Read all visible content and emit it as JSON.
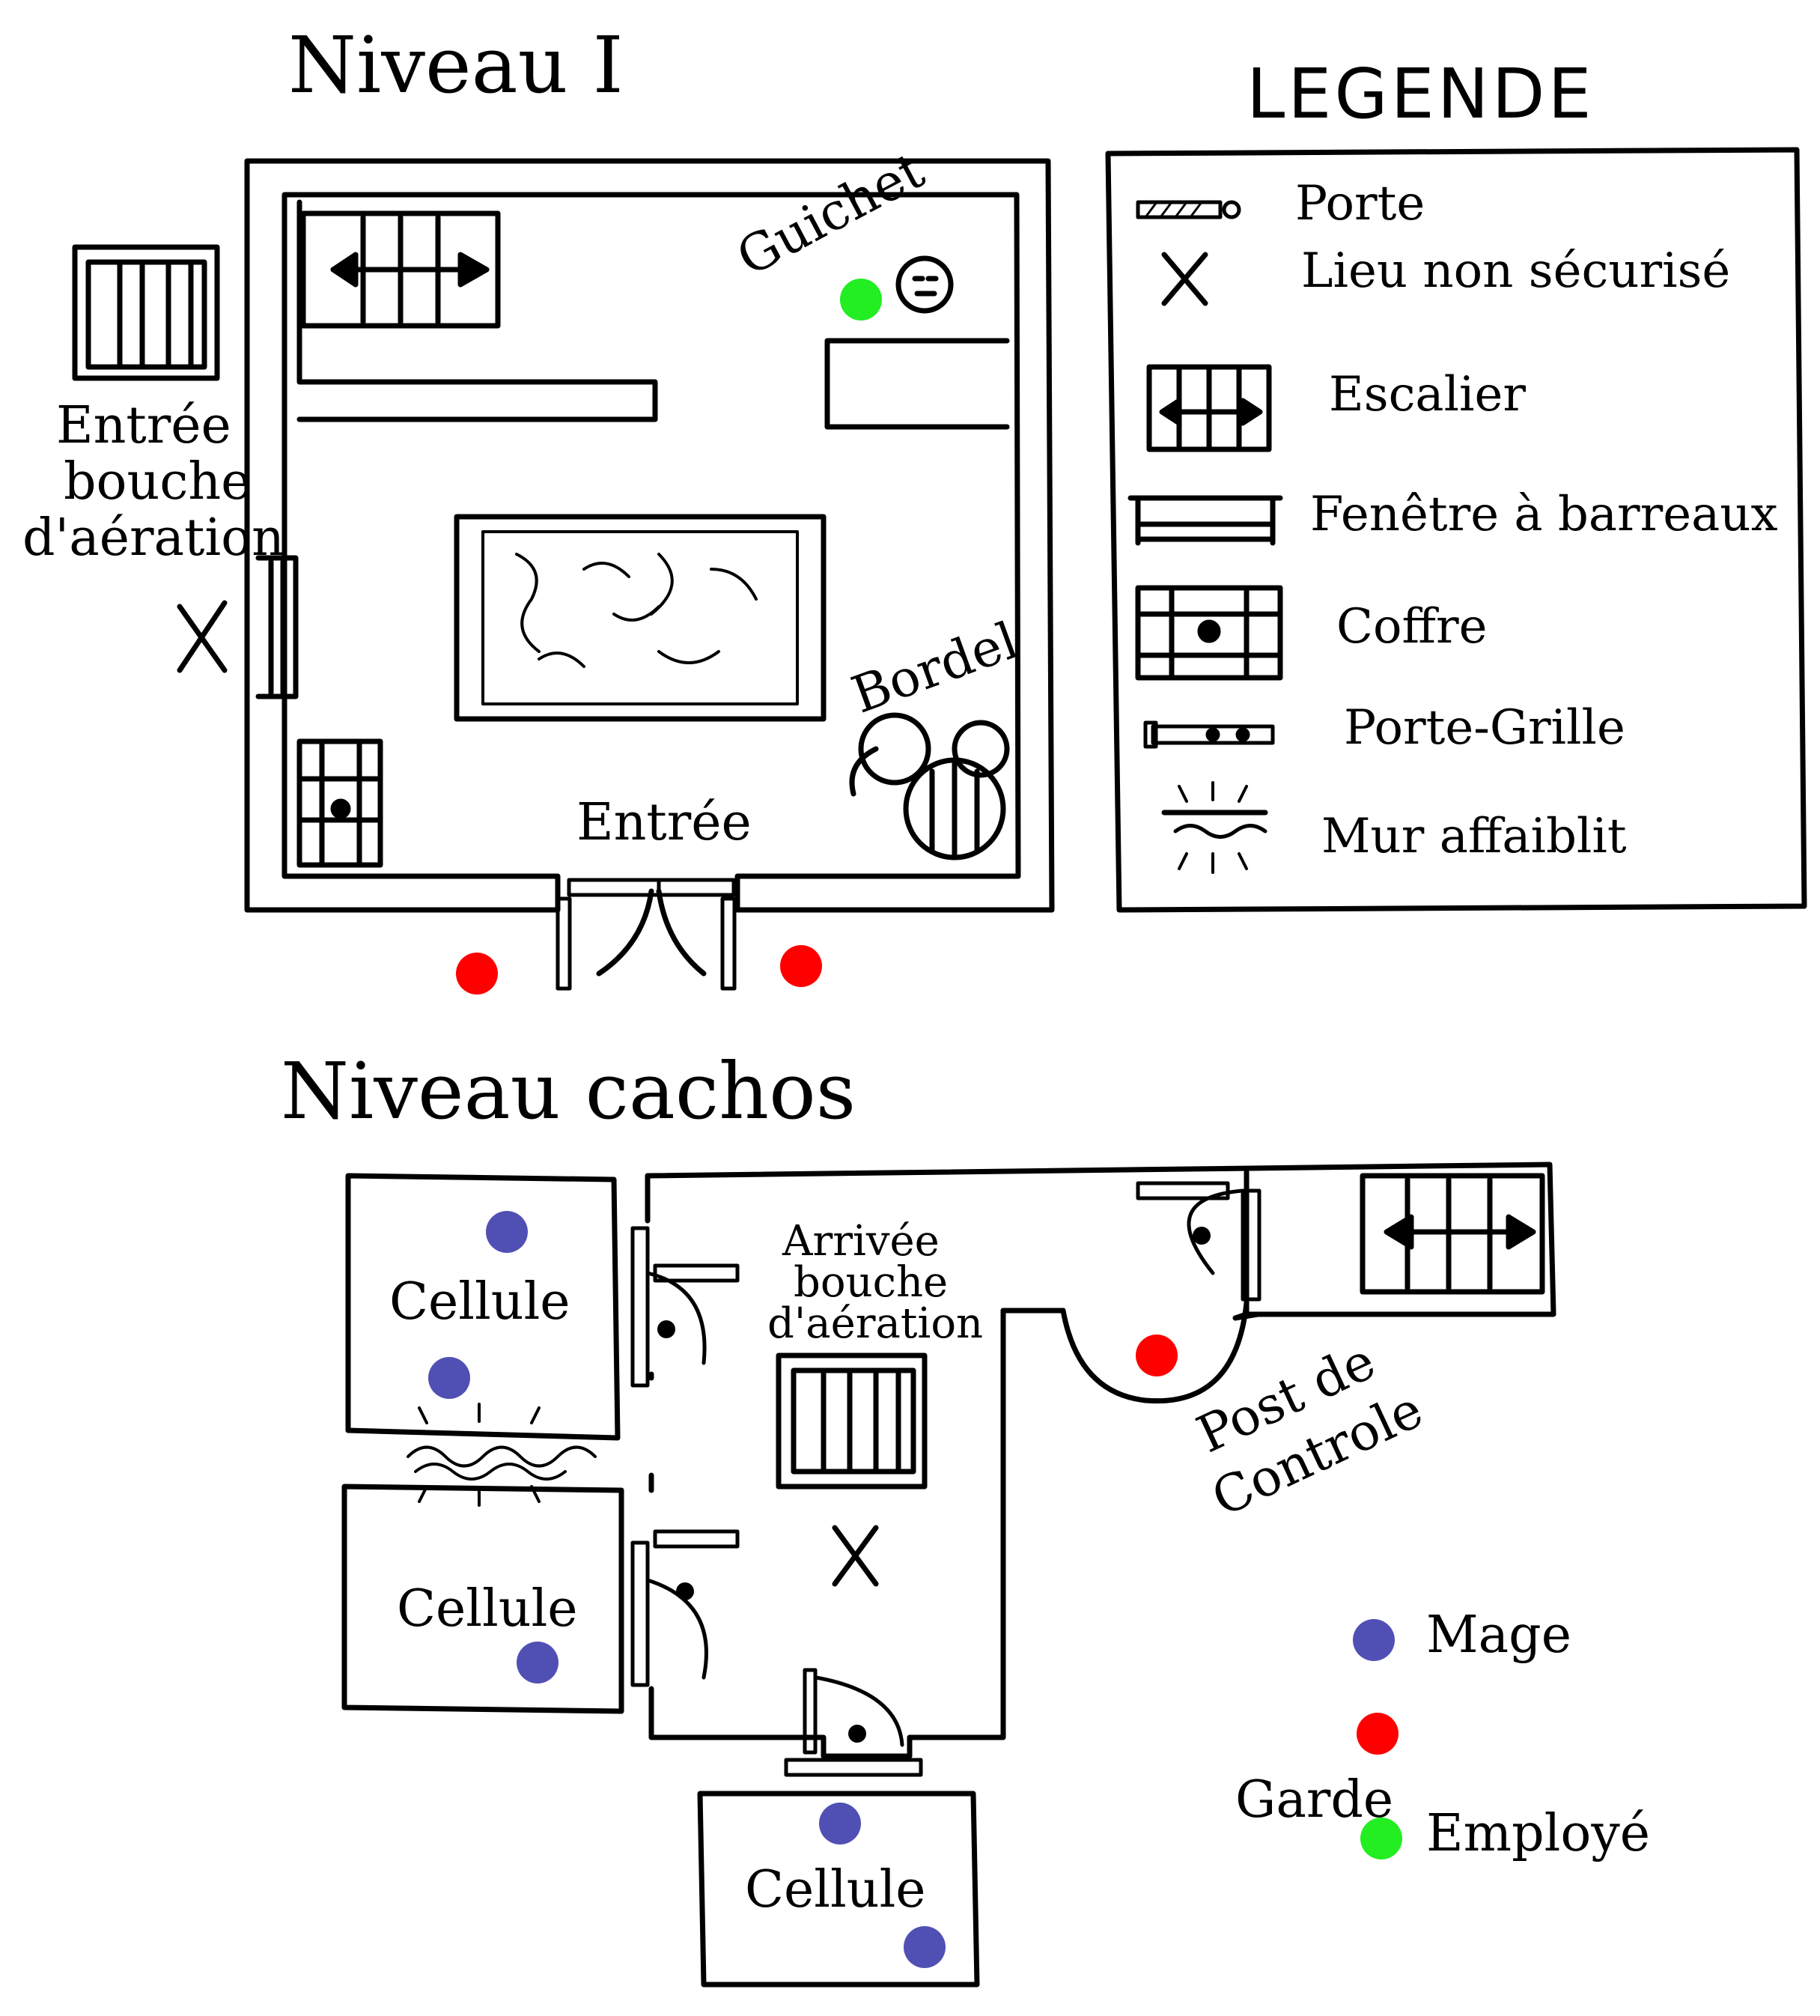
{
  "level1": {
    "title": "Niveau I",
    "entrance": "Entrée",
    "vent_entrance": [
      "Entrée",
      "bouche",
      "d'aération"
    ],
    "counter": "Guichet",
    "brothel": "Bordel"
  },
  "legend": {
    "title": "LEGENDE",
    "items": [
      {
        "icon": "door-icon",
        "label": "Porte"
      },
      {
        "icon": "cross-icon",
        "label": "Lieu non sécurisé"
      },
      {
        "icon": "stairs-icon",
        "label": "Escalier"
      },
      {
        "icon": "barred-window-icon",
        "label": "Fenêtre à barreaux"
      },
      {
        "icon": "chest-icon",
        "label": "Coffre"
      },
      {
        "icon": "gate-door-icon",
        "label": "Porte-Grille"
      },
      {
        "icon": "weak-wall-icon",
        "label": "Mur affaiblit"
      }
    ]
  },
  "cells_level": {
    "title": "Niveau cachos",
    "cell_label": "Cellule",
    "vent_arrival": [
      "Arrivée",
      "bouche",
      "d'aération"
    ],
    "checkpoint": [
      "Post de",
      "Controle"
    ]
  },
  "markers_legend": {
    "mage": "Mage",
    "guard": "Garde",
    "employee": "Employé"
  },
  "colors": {
    "mage": "#5050b4",
    "guard": "#ff0000",
    "employee": "#22ee22",
    "ink": "#000000"
  }
}
